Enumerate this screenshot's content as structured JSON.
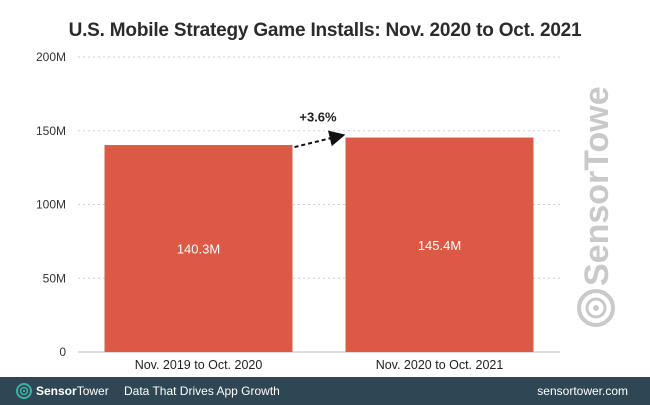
{
  "chart_data": {
    "type": "bar",
    "title": "U.S. Mobile Strategy Game Installs: Nov. 2020 to Oct. 2021",
    "categories": [
      "Nov. 2019 to Oct. 2020",
      "Nov. 2020 to Oct. 2021"
    ],
    "values": [
      140.3,
      145.4
    ],
    "data_labels": [
      "140.3M",
      "145.4M"
    ],
    "y_ticks": [
      0,
      50,
      100,
      150,
      200
    ],
    "y_tick_labels": [
      "0",
      "50M",
      "100M",
      "150M",
      "200M"
    ],
    "ylim": [
      0,
      200
    ],
    "grid": true,
    "annotation": "+3.6%",
    "bar_color": "#dc5a45"
  },
  "footer": {
    "brand_bold": "Sensor",
    "brand_light": "Tower",
    "tagline": "Data That Drives App Growth",
    "site": "sensortower.com"
  },
  "watermark": {
    "text": "SensorTower"
  },
  "colors": {
    "footer_bg": "#2f4655",
    "accent": "#dc5a45",
    "teal": "#3fb0a5"
  }
}
